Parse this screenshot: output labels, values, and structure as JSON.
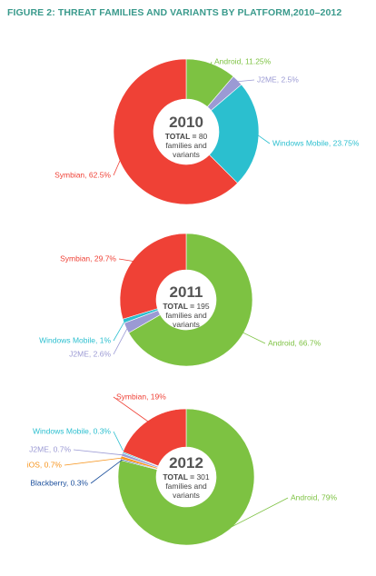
{
  "title": "FIGURE 2: THREAT FAMILIES AND VARIANTS BY PLATFORM,2010–2012",
  "chart_data": [
    {
      "type": "donut",
      "title": "2010",
      "total_label": "TOTAL =",
      "total": 80,
      "caption": "families and variants",
      "labels": [
        "Android, 11.25%",
        "J2ME, 2.5%",
        "Windows Mobile, 23.75%",
        "Symbian, 62.5%"
      ],
      "values": [
        11.25,
        2.5,
        23.75,
        62.5
      ],
      "colors": [
        "#7dc242",
        "#9b9ad4",
        "#2bbfcf",
        "#ef4136"
      ]
    },
    {
      "type": "donut",
      "title": "2011",
      "total_label": "TOTAL =",
      "total": 195,
      "caption": "families and variants",
      "labels": [
        "Android, 66.7%",
        "J2ME, 2.6%",
        "Windows Mobile, 1%",
        "Symbian, 29.7%"
      ],
      "values": [
        66.7,
        2.6,
        1,
        29.7
      ],
      "colors": [
        "#7dc242",
        "#9b9ad4",
        "#2bbfcf",
        "#ef4136"
      ]
    },
    {
      "type": "donut",
      "title": "2012",
      "total_label": "TOTAL =",
      "total": 301,
      "caption": "families and variants",
      "labels": [
        "Android, 79%",
        "Blackberry, 0.3%",
        "iOS, 0.7%",
        "J2ME, 0.7%",
        "Windows Mobile, 0.3%",
        "Symbian, 19%"
      ],
      "values": [
        79,
        0.3,
        0.7,
        0.7,
        0.3,
        19
      ],
      "colors": [
        "#7dc242",
        "#1b4f9c",
        "#f7941d",
        "#9b9ad4",
        "#2bbfcf",
        "#ef4136"
      ]
    }
  ]
}
